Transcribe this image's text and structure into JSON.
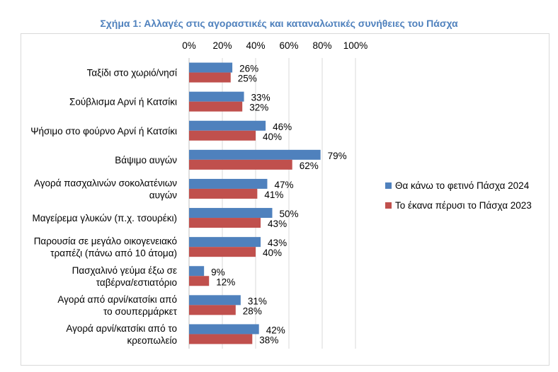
{
  "chart_data": {
    "type": "bar",
    "orientation": "horizontal",
    "title": "Σχήμα 1: Αλλαγές στις αγοραστικές και καταναλωτικές συνήθειες του Πάσχα",
    "xlim": [
      0,
      100
    ],
    "x_ticks": [
      "0%",
      "20%",
      "40%",
      "60%",
      "80%",
      "100%"
    ],
    "x_axis_position": "top",
    "grid": true,
    "legend_position": "right",
    "categories": [
      [
        "Ταξίδι στο χωριό/νησί"
      ],
      [
        "Σούβλισμα Αρνί ή Κατσίκι"
      ],
      [
        "Ψήσιμο στο φούρνο Αρνί ή Κατσίκι"
      ],
      [
        "Βάψιμο αυγών"
      ],
      [
        "Αγορά πασχαλινών σοκολατένιων",
        "αυγών"
      ],
      [
        "Μαγείρεμα γλυκών (π.χ. τσουρέκι)"
      ],
      [
        "Παρουσία σε μεγάλο οικογενειακό",
        "τραπέζι (πάνω από 10 άτομα)"
      ],
      [
        "Πασχαλινό γεύμα έξω σε",
        "ταβέρνα/εστιατόριο"
      ],
      [
        "Αγορά από αρνί/κατσίκι από",
        "το σουπερμάρκετ"
      ],
      [
        "Αγορά αρνί/κατσίκι από το",
        "κρεοπωλείο"
      ]
    ],
    "series": [
      {
        "name": "Θα κάνω το φετινό Πάσχα 2024",
        "color": "#4f81bd",
        "values": [
          26,
          33,
          46,
          79,
          47,
          50,
          43,
          9,
          31,
          42
        ],
        "labels": [
          "26%",
          "33%",
          "46%",
          "79%",
          "47%",
          "50%",
          "43%",
          "9%",
          "31%",
          "42%"
        ]
      },
      {
        "name": "Το έκανα πέρυσι το Πάσχα 2023",
        "color": "#c0504d",
        "values": [
          25,
          32,
          40,
          62,
          41,
          43,
          40,
          12,
          28,
          38
        ],
        "labels": [
          "25%",
          "32%",
          "40%",
          "62%",
          "41%",
          "43%",
          "40%",
          "12%",
          "28%",
          "38%"
        ]
      }
    ]
  }
}
